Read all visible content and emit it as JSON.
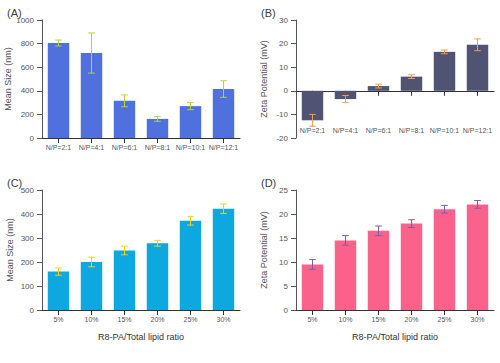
{
  "chart_data": [
    {
      "type": "bar",
      "title": "(A)",
      "categories": [
        "N/P=2:1",
        "N/P=4:1",
        "N/P=6:1",
        "N/P=8:1",
        "N/P=10:1",
        "N/P=12:1"
      ],
      "values": [
        805,
        720,
        315,
        162,
        270,
        415
      ],
      "errors": [
        25,
        170,
        50,
        20,
        30,
        70
      ],
      "ylabel": "Mean Size (nm)",
      "ylim": [
        0,
        1000
      ],
      "yticks": [
        0,
        200,
        400,
        600,
        800,
        1000
      ],
      "grid": false
    },
    {
      "type": "bar",
      "title": "(B)",
      "categories": [
        "N/P=2:1",
        "N/P=4:1",
        "N/P=6:1",
        "N/P=8:1",
        "N/P=10:1",
        "N/P=12:1"
      ],
      "values": [
        -12.5,
        -3.5,
        2.0,
        6.0,
        16.5,
        19.5
      ],
      "errors": [
        2.5,
        1.5,
        0.8,
        0.8,
        0.8,
        2.5
      ],
      "ylabel": "Zeta Potential (mV)",
      "ylim": [
        -20,
        30
      ],
      "yticks": [
        -20,
        -10,
        0,
        10,
        20,
        30
      ],
      "grid": false
    },
    {
      "type": "bar",
      "title": "(C)",
      "categories": [
        "5%",
        "10%",
        "15%",
        "20%",
        "25%",
        "30%"
      ],
      "values": [
        160,
        200,
        248,
        278,
        372,
        422
      ],
      "errors": [
        15,
        20,
        18,
        12,
        18,
        20
      ],
      "ylabel": "Mean Size (nm)",
      "xlabel": "R8-PA/Total lipid ratio",
      "ylim": [
        0,
        500
      ],
      "yticks": [
        0,
        100,
        200,
        300,
        400,
        500
      ],
      "grid": false
    },
    {
      "type": "bar",
      "title": "(D)",
      "categories": [
        "5%",
        "10%",
        "15%",
        "20%",
        "25%",
        "30%"
      ],
      "values": [
        9.5,
        14.5,
        16.5,
        18.0,
        21.0,
        22.0
      ],
      "errors": [
        1.0,
        1.0,
        1.0,
        0.8,
        0.8,
        0.8
      ],
      "ylabel": "Zeta Potential (mV)",
      "xlabel": "R8-PA/Total lipid ratio",
      "ylim": [
        0,
        25
      ],
      "yticks": [
        0,
        5,
        10,
        15,
        20,
        25
      ],
      "grid": false
    }
  ]
}
